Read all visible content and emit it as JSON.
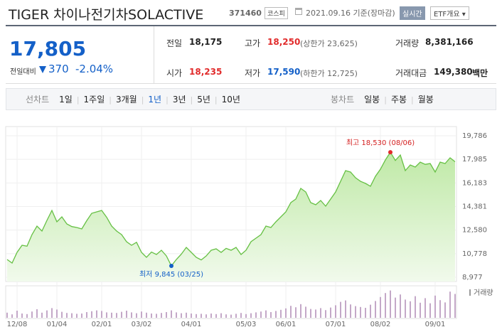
{
  "header": {
    "title": "TIGER 차이나전기차SOLACTIVE",
    "code": "371460",
    "market": "코스피",
    "date": "2021.09.16 기준(장마감)",
    "realtime": "실시간",
    "etf": "ETF개요"
  },
  "quote": {
    "price": "17,805",
    "change_label": "전일대비",
    "change": "370",
    "change_pct": "-2.04%"
  },
  "stats": [
    [
      {
        "label": "전일",
        "value": "18,175"
      },
      {
        "label": "고가",
        "value": "18,250",
        "note": "(상한가 23,625)"
      },
      {
        "label": "거래량",
        "value": "8,381,166"
      }
    ],
    [
      {
        "label": "시가",
        "value": "18,235"
      },
      {
        "label": "저가",
        "value": "17,590",
        "note": "(하한가 12,725)"
      },
      {
        "label": "거래대금",
        "value": "149,380",
        "unit": "백만"
      }
    ]
  ],
  "line_tabs": {
    "label": "선차트",
    "items": [
      "1일",
      "1주일",
      "3개월",
      "1년",
      "3년",
      "5년",
      "10년"
    ],
    "selected": "1년"
  },
  "candle_tabs": {
    "label": "봉차트",
    "items": [
      "일봉",
      "주봉",
      "월봉"
    ]
  },
  "chart_data": {
    "type": "area",
    "categories": [
      null,
      null,
      "12/08",
      null,
      null,
      null,
      null,
      null,
      null,
      null,
      "01/04",
      null,
      null,
      null,
      null,
      null,
      null,
      null,
      null,
      "02/01",
      null,
      null,
      null,
      null,
      null,
      null,
      null,
      "03/02",
      null,
      null,
      null,
      null,
      null,
      null,
      null,
      null,
      null,
      "04/01",
      null,
      null,
      null,
      null,
      null,
      null,
      null,
      null,
      null,
      null,
      "05/03",
      null,
      null,
      null,
      null,
      null,
      null,
      null,
      "06/01",
      null,
      null,
      null,
      null,
      null,
      null,
      null,
      null,
      null,
      "07/01",
      null,
      null,
      null,
      null,
      null,
      null,
      null,
      null,
      "08/02",
      null,
      null,
      null,
      null,
      null,
      null,
      null,
      null,
      null,
      null,
      "09/01",
      null,
      null,
      null,
      null
    ],
    "series": [
      {
        "color": "#66c044",
        "values": [
          10334,
          10063,
          10878,
          11421,
          11350,
          12236,
          12887,
          12507,
          13322,
          14082,
          13213,
          13594,
          13050,
          12850,
          12779,
          12670,
          13300,
          13865,
          13974,
          14082,
          13560,
          12887,
          12507,
          12236,
          11692,
          11421,
          11650,
          10878,
          10497,
          10900,
          10715,
          11040,
          10606,
          9845,
          10334,
          10740,
          11258,
          10878,
          10497,
          10300,
          10606,
          11040,
          11149,
          10878,
          11180,
          11040,
          11258,
          10715,
          11040,
          11692,
          11964,
          12236,
          12887,
          12779,
          13213,
          13594,
          13974,
          14680,
          14952,
          15766,
          15495,
          14680,
          14517,
          14843,
          14408,
          14952,
          15495,
          16310,
          17124,
          17016,
          16581,
          16310,
          16147,
          15929,
          16690,
          17233,
          17939,
          18530,
          17900,
          18319,
          17124,
          17559,
          17396,
          17776,
          17600,
          17668,
          17016,
          17776,
          17668,
          18102,
          17805
        ]
      }
    ],
    "ylim": [
      8977,
      19786
    ],
    "yticks": [
      {
        "value": 8977,
        "label": "8,977"
      },
      {
        "value": 10778,
        "label": "10,778"
      },
      {
        "value": 12580,
        "label": "12,580"
      },
      {
        "value": 14381,
        "label": "14,381"
      },
      {
        "value": 16183,
        "label": "16,183"
      },
      {
        "value": 17985,
        "label": "17,985"
      },
      {
        "value": 19786,
        "label": "19,786"
      }
    ],
    "grid": true,
    "annotations": {
      "high": "최고 18,530 (08/06)",
      "low": "최저 9,845 (03/25)"
    },
    "volume": {
      "name": "거래량",
      "color": "#c4a8c8",
      "ylim": [
        0,
        10000000
      ],
      "values": [
        1800000,
        1200000,
        2500000,
        1500000,
        1300000,
        2200000,
        3000000,
        1800000,
        2600000,
        3400000,
        2900000,
        2100000,
        1700000,
        1600000,
        1400000,
        1500000,
        2000000,
        2300000,
        2600000,
        2400000,
        1900000,
        1800000,
        1700000,
        2100000,
        2500000,
        1900000,
        1600000,
        2200000,
        1800000,
        1500000,
        1400000,
        1700000,
        2000000,
        2600000,
        1900000,
        1600000,
        1800000,
        1500000,
        1300000,
        1400000,
        1200000,
        1500000,
        1300000,
        1600000,
        1200000,
        1100000,
        1400000,
        1700000,
        1300000,
        1600000,
        1900000,
        2200000,
        2600000,
        2000000,
        2400000,
        2800000,
        3300000,
        4200000,
        3700000,
        4800000,
        3900000,
        3100000,
        2900000,
        3400000,
        2700000,
        3600000,
        4400000,
        5600000,
        6100000,
        4700000,
        4100000,
        3800000,
        3500000,
        4600000,
        5900000,
        7300000,
        8700000,
        9600000,
        7100000,
        8200000,
        6400000,
        5800000,
        7600000,
        5300000,
        6900000,
        5100000,
        7800000,
        6200000,
        5400000,
        9200000,
        8381166
      ]
    }
  }
}
